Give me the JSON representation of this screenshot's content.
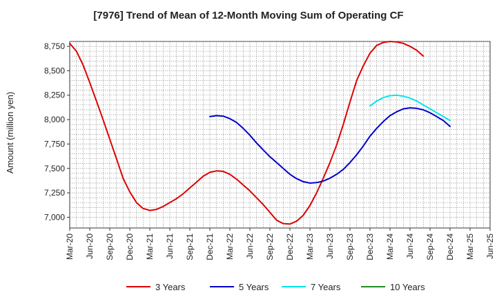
{
  "chart_data": {
    "type": "line",
    "title": "[7976]  Trend of Mean of 12-Month Moving Sum of Operating CF",
    "xlabel": "",
    "ylabel": "Amount (million yen)",
    "ylim": [
      6890,
      8800
    ],
    "yticks": [
      7000,
      7250,
      7500,
      7750,
      8000,
      8250,
      8500,
      8750
    ],
    "ytick_labels": [
      "7,000",
      "7,250",
      "7,500",
      "7,750",
      "8,000",
      "8,250",
      "8,500",
      "8,750"
    ],
    "x_tick_labels": [
      "Mar-20",
      "Jun-20",
      "Sep-20",
      "Dec-20",
      "Mar-21",
      "Jun-21",
      "Sep-21",
      "Dec-21",
      "Mar-22",
      "Jun-22",
      "Sep-22",
      "Dec-22",
      "Mar-23",
      "Jun-23",
      "Sep-23",
      "Dec-23",
      "Mar-24",
      "Jun-24",
      "Sep-24",
      "Dec-24",
      "Mar-25",
      "Jun-25"
    ],
    "x_range_months": [
      0,
      63
    ],
    "grid": true,
    "legend_position": "bottom",
    "series": [
      {
        "name": "3 Years",
        "color": "#dd0000",
        "start_month": 0,
        "values": [
          8780,
          8700,
          8560,
          8380,
          8190,
          8000,
          7800,
          7600,
          7400,
          7260,
          7150,
          7090,
          7070,
          7080,
          7110,
          7150,
          7190,
          7240,
          7300,
          7360,
          7420,
          7460,
          7475,
          7470,
          7440,
          7390,
          7330,
          7270,
          7200,
          7130,
          7050,
          6970,
          6935,
          6930,
          6960,
          7020,
          7120,
          7250,
          7400,
          7560,
          7740,
          7950,
          8180,
          8400,
          8550,
          8680,
          8760,
          8790,
          8800,
          8795,
          8780,
          8750,
          8710,
          8650
        ]
      },
      {
        "name": "5 Years",
        "color": "#0000cc",
        "start_month": 21,
        "values": [
          8030,
          8040,
          8035,
          8010,
          7970,
          7910,
          7840,
          7760,
          7690,
          7620,
          7560,
          7500,
          7440,
          7395,
          7365,
          7350,
          7355,
          7370,
          7400,
          7440,
          7490,
          7560,
          7640,
          7730,
          7830,
          7910,
          7980,
          8040,
          8080,
          8110,
          8120,
          8115,
          8100,
          8070,
          8030,
          7990,
          7930
        ]
      },
      {
        "name": "7 Years",
        "color": "#00e5ee",
        "start_month": 45,
        "values": [
          8140,
          8190,
          8225,
          8245,
          8250,
          8240,
          8220,
          8190,
          8150,
          8110,
          8070,
          8030,
          7990
        ]
      },
      {
        "name": "10 Years",
        "color": "#228b22",
        "start_month": 0,
        "values": []
      }
    ]
  }
}
